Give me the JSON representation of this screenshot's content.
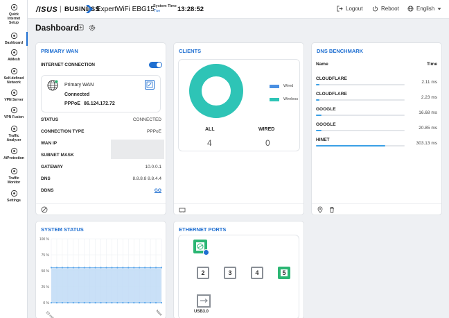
{
  "header": {
    "brand": "/ISUS",
    "brand_suffix": "BUSINESS",
    "model": "ExpertWiFi EBG15",
    "system_time_label": "System Time",
    "system_time_day": "Tue",
    "system_time": "13:28:52",
    "logout": "Logout",
    "reboot": "Reboot",
    "language": "English"
  },
  "sidebar": {
    "items": [
      {
        "label": "Quick Internet Setup",
        "lines": [
          "Quick",
          "Internet",
          "Setup"
        ],
        "icon": "quick-setup-icon"
      },
      {
        "label": "Dashboard",
        "lines": [
          "Dashboard"
        ],
        "icon": "dashboard-icon"
      },
      {
        "label": "AiMesh",
        "lines": [
          "AiMesh"
        ],
        "icon": "aimesh-icon"
      },
      {
        "label": "Self-defined Network",
        "lines": [
          "Self-defined",
          "Network"
        ],
        "icon": "network-icon"
      },
      {
        "label": "VPN Server",
        "lines": [
          "VPN Server"
        ],
        "icon": "vpn-server-icon"
      },
      {
        "label": "VPN Fusion",
        "lines": [
          "VPN Fusion"
        ],
        "icon": "vpn-fusion-icon"
      },
      {
        "label": "Traffic Analyzer",
        "lines": [
          "Traffic",
          "Analyzer"
        ],
        "icon": "traffic-analyzer-icon"
      },
      {
        "label": "AiProtection",
        "lines": [
          "AiProtection"
        ],
        "icon": "aiprotection-icon"
      },
      {
        "label": "Traffic Monitor",
        "lines": [
          "Traffic",
          "Monitor"
        ],
        "icon": "traffic-monitor-icon"
      },
      {
        "label": "Settings",
        "lines": [
          "Settings"
        ],
        "icon": "settings-icon"
      }
    ]
  },
  "page": {
    "title": "Dashboard"
  },
  "primary_wan": {
    "title": "PRIMARY WAN",
    "internet_connection_label": "INTERNET CONNECTION",
    "internet_connection_on": true,
    "wan_name": "Primary WAN",
    "wan_state": "Connected",
    "wan_protocol": "PPPoE",
    "wan_ip_address": "86.124.172.72",
    "rows": [
      {
        "label": "STATUS",
        "value": "CONNECTED"
      },
      {
        "label": "CONNECTION TYPE",
        "value": "PPPoE"
      },
      {
        "label": "WAN IP",
        "value": ""
      },
      {
        "label": "SUBNET MASK",
        "value": ""
      },
      {
        "label": "GATEWAY",
        "value": "10.0.0.1"
      },
      {
        "label": "DNS",
        "value": "8.8.8.8 8.8.4.4"
      },
      {
        "label": "DDNS",
        "value": "GO"
      }
    ]
  },
  "clients": {
    "title": "CLIENTS",
    "legend": [
      {
        "name": "Wired",
        "color": "#4a90e2"
      },
      {
        "name": "Wireless",
        "color": "#2ec4b6"
      }
    ],
    "all_label": "ALL",
    "all_count": "4",
    "wired_label": "WIRED",
    "wired_count": "0",
    "donut_wireless_fraction": 1.0
  },
  "dns_benchmark": {
    "title": "DNS BENCHMARK",
    "col_name": "Name",
    "col_time": "Time",
    "rows": [
      {
        "name": "CLOUDFLARE",
        "time": "2.11 ms",
        "fraction": 0.04
      },
      {
        "name": "CLOUDFLARE",
        "time": "2.23 ms",
        "fraction": 0.04
      },
      {
        "name": "GOOGLE",
        "time": "16.68 ms",
        "fraction": 0.06
      },
      {
        "name": "GOOGLE",
        "time": "20.85 ms",
        "fraction": 0.06
      },
      {
        "name": "HINET",
        "time": "303.13 ms",
        "fraction": 0.78
      }
    ]
  },
  "system_status": {
    "title": "SYSTEM STATUS",
    "chart_data": {
      "type": "area",
      "y_ticks": [
        "100 %",
        "75 %",
        "50 %",
        "25 %",
        "0 %"
      ],
      "ylim": [
        0,
        100
      ],
      "x_labels": [
        "10 mins",
        "Now"
      ],
      "series": [
        {
          "values": [
            55,
            55,
            55,
            55,
            55,
            55,
            55,
            55,
            55,
            55,
            55,
            55,
            55,
            55,
            55,
            55,
            55,
            55,
            55,
            55,
            55
          ]
        },
        {
          "values": [
            0,
            0,
            0,
            0,
            0,
            0,
            0,
            0,
            0,
            0,
            0,
            0,
            0,
            0,
            0,
            0,
            0,
            0,
            0,
            0,
            0
          ]
        }
      ],
      "colors": {
        "fill": "#bcd8f5",
        "line": "#5aa6ea"
      }
    }
  },
  "ethernet_ports": {
    "title": "ETHERNET PORTS",
    "wan_port_active": true,
    "lan_ports": [
      {
        "label": "2",
        "active": false
      },
      {
        "label": "3",
        "active": false
      },
      {
        "label": "4",
        "active": false
      },
      {
        "label": "5",
        "active": true
      }
    ],
    "usb_label": "USB3.0"
  },
  "colors": {
    "accent": "#1f6fd1",
    "active_port": "#2bb673"
  }
}
